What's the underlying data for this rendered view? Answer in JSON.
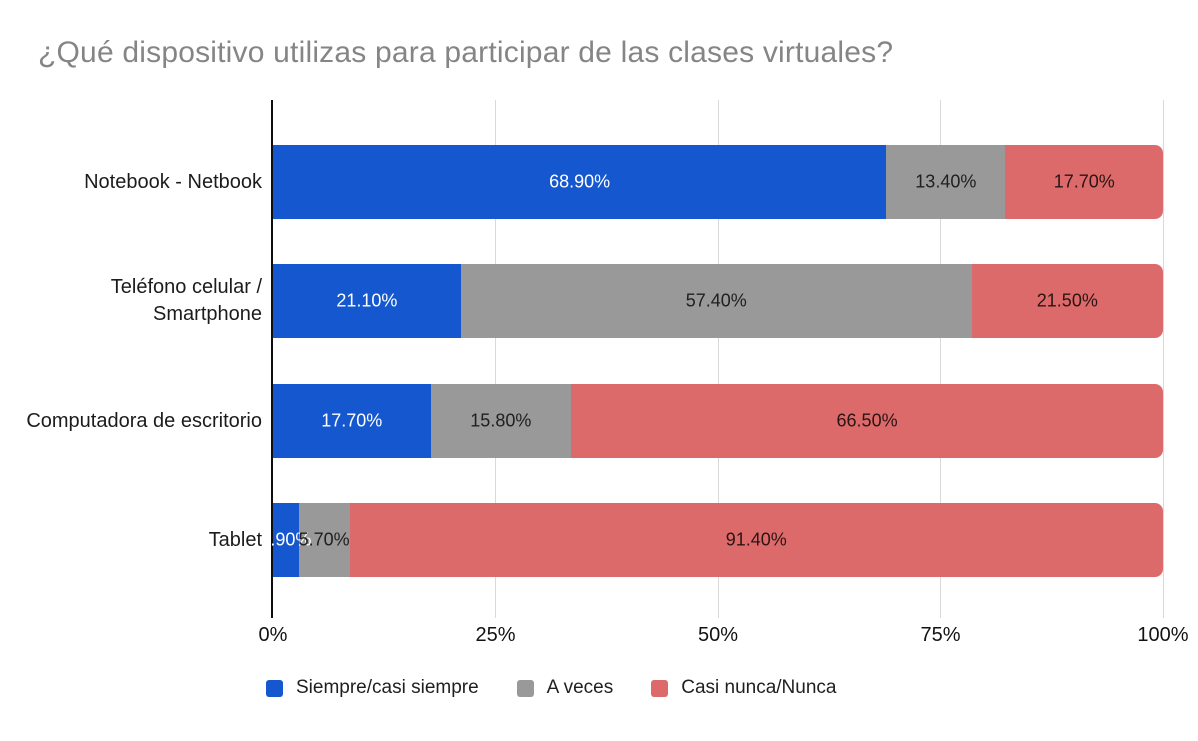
{
  "chart_data": {
    "type": "bar",
    "orientation": "horizontal",
    "stacked": true,
    "title": "¿Qué dispositivo utilizas para participar de las clases virtuales?",
    "categories": [
      "Notebook - Netbook",
      "Teléfono celular / Smartphone",
      "Computadora de escritorio",
      "Tablet"
    ],
    "series": [
      {
        "name": "Siempre/casi siempre",
        "color": "#1457CE",
        "label_color": "#ffffff",
        "values": [
          68.9,
          21.1,
          17.7,
          2.9
        ],
        "labels": [
          "68.90%",
          "21.10%",
          "17.70%",
          "2.90%"
        ]
      },
      {
        "name": "A veces",
        "color": "#999999",
        "label_color": "#202020",
        "values": [
          13.4,
          57.4,
          15.8,
          5.7
        ],
        "labels": [
          "13.40%",
          "57.40%",
          "15.80%",
          "5.70%"
        ]
      },
      {
        "name": "Casi nunca/Nunca",
        "color": "#DD6A6A",
        "label_color": "#2a1414",
        "values": [
          17.7,
          21.5,
          66.5,
          91.4
        ],
        "labels": [
          "17.70%",
          "21.50%",
          "66.50%",
          "91.40%"
        ]
      }
    ],
    "xlabel": "",
    "ylabel": "",
    "x_axis": {
      "range": [
        0,
        100
      ],
      "ticks": [
        0,
        25,
        50,
        75,
        100
      ],
      "tick_labels": [
        "0%",
        "25%",
        "50%",
        "75%",
        "100%"
      ]
    },
    "grid": true,
    "legend_position": "bottom",
    "style": {
      "grid_color": "#d9d9d9",
      "axis_color": "#0e0e0e",
      "title_color": "#858585",
      "text_color": "#1c1c1c"
    }
  }
}
